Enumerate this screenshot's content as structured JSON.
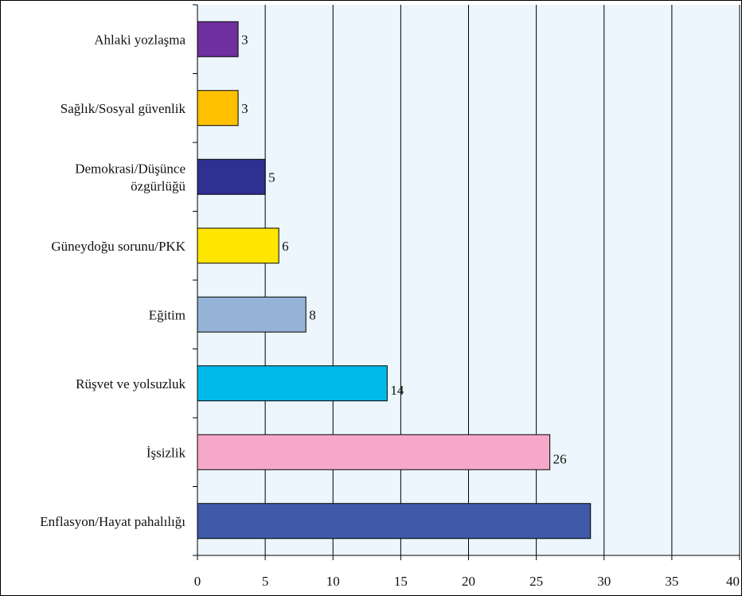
{
  "chart_data": {
    "type": "bar",
    "orientation": "horizontal",
    "title": "",
    "xlabel": "",
    "ylabel": "",
    "xlim": [
      0,
      40
    ],
    "xticks": [
      0,
      5,
      10,
      15,
      20,
      25,
      30,
      35,
      40
    ],
    "grid": "vertical",
    "legend": "none",
    "categories": [
      [
        "Ahlaki yozlaşma"
      ],
      [
        "Sağlık/Sosyal güvenlik"
      ],
      [
        "Demokrasi/Düşünce",
        "özgürlüğü"
      ],
      [
        "Güneydoğu sorunu/PKK"
      ],
      [
        "Eğitim"
      ],
      [
        "Rüşvet ve yolsuzluk"
      ],
      [
        "İşsizlik"
      ],
      [
        "Enflasyon/Hayat pahalılığı"
      ]
    ],
    "values": [
      3,
      3,
      5,
      6,
      8,
      14,
      26,
      29
    ],
    "data_labels": [
      "3",
      "3",
      "5",
      "6",
      "8",
      "14",
      "26",
      ""
    ],
    "colors": [
      "#7030a0",
      "#ffc000",
      "#2e3192",
      "#ffe600",
      "#95b3d7",
      "#00b9eb",
      "#f6a8c8",
      "#3f5aa8"
    ],
    "plot_background": "#ecf6fc"
  }
}
